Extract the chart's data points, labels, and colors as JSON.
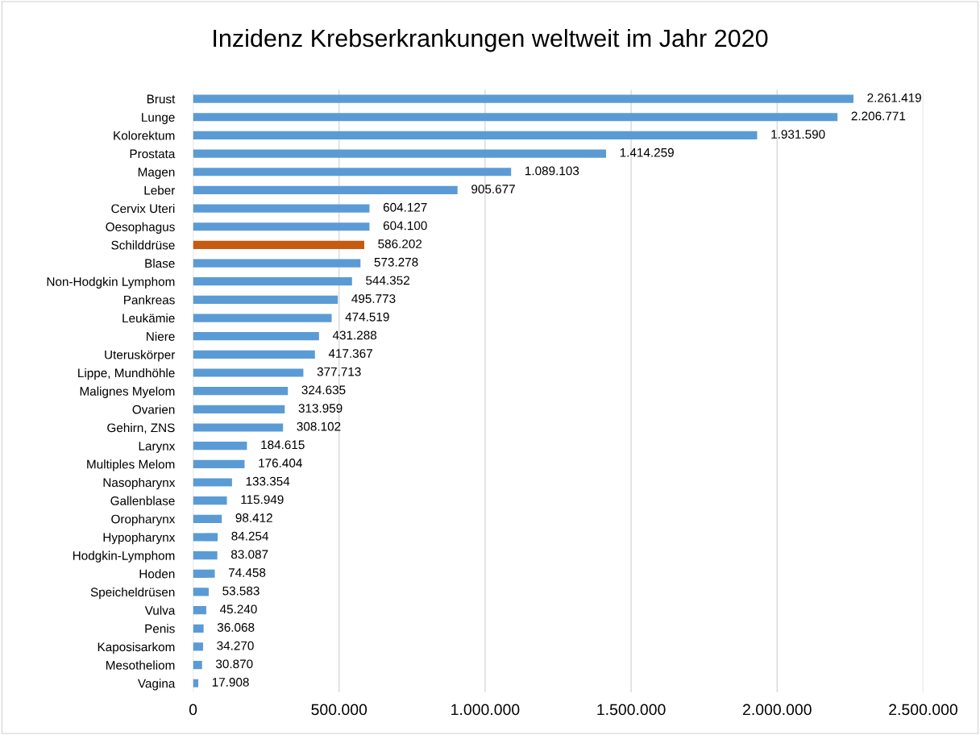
{
  "chart_data": {
    "type": "bar",
    "orientation": "horizontal",
    "title": "Inzidenz Krebserkrankungen weltweit im Jahr 2020",
    "categories": [
      "Brust",
      "Lunge",
      "Kolorektum",
      "Prostata",
      "Magen",
      "Leber",
      "Cervix Uteri",
      "Oesophagus",
      "Schilddrüse",
      "Blase",
      "Non-Hodgkin Lymphom",
      "Pankreas",
      "Leukämie",
      "Niere",
      "Uteruskörper",
      "Lippe, Mundhöhle",
      "Malignes Myelom",
      "Ovarien",
      "Gehirn, ZNS",
      "Larynx",
      "Multiples Melom",
      "Nasopharynx",
      "Gallenblase",
      "Oropharynx",
      "Hypopharynx",
      "Hodgkin-Lymphom",
      "Hoden",
      "Speicheldrüsen",
      "Vulva",
      "Penis",
      "Kaposisarkom",
      "Mesotheliom",
      "Vagina"
    ],
    "values": [
      2261419,
      2206771,
      1931590,
      1414259,
      1089103,
      905677,
      604127,
      604100,
      586202,
      573278,
      544352,
      495773,
      474519,
      431288,
      417367,
      377713,
      324635,
      313959,
      308102,
      184615,
      176404,
      133354,
      115949,
      98412,
      84254,
      83087,
      74458,
      53583,
      45240,
      36068,
      34270,
      30870,
      17908
    ],
    "value_labels": [
      "2.261.419",
      "2.206.771",
      "1.931.590",
      "1.414.259",
      "1.089.103",
      "905.677",
      "604.127",
      "604.100",
      "586.202",
      "573.278",
      "544.352",
      "495.773",
      "474.519",
      "431.288",
      "417.367",
      "377.713",
      "324.635",
      "313.959",
      "308.102",
      "184.615",
      "176.404",
      "133.354",
      "115.949",
      "98.412",
      "84.254",
      "83.087",
      "74.458",
      "53.583",
      "45.240",
      "36.068",
      "34.270",
      "30.870",
      "17.908"
    ],
    "colors": [
      "#5b9bd5",
      "#5b9bd5",
      "#5b9bd5",
      "#5b9bd5",
      "#5b9bd5",
      "#5b9bd5",
      "#5b9bd5",
      "#5b9bd5",
      "#c55a11",
      "#5b9bd5",
      "#5b9bd5",
      "#5b9bd5",
      "#5b9bd5",
      "#5b9bd5",
      "#5b9bd5",
      "#5b9bd5",
      "#5b9bd5",
      "#5b9bd5",
      "#5b9bd5",
      "#5b9bd5",
      "#5b9bd5",
      "#5b9bd5",
      "#5b9bd5",
      "#5b9bd5",
      "#5b9bd5",
      "#5b9bd5",
      "#5b9bd5",
      "#5b9bd5",
      "#5b9bd5",
      "#5b9bd5",
      "#5b9bd5",
      "#5b9bd5",
      "#5b9bd5"
    ],
    "xlim": [
      0,
      2500000
    ],
    "xticks": [
      {
        "value": 0,
        "label": "0"
      },
      {
        "value": 500000,
        "label": "500.000"
      },
      {
        "value": 1000000,
        "label": "1.000.000"
      },
      {
        "value": 1500000,
        "label": "1.500.000"
      },
      {
        "value": 2000000,
        "label": "2.000.000"
      },
      {
        "value": 2500000,
        "label": "2.500.000"
      }
    ],
    "grid": "x",
    "legend": false
  }
}
